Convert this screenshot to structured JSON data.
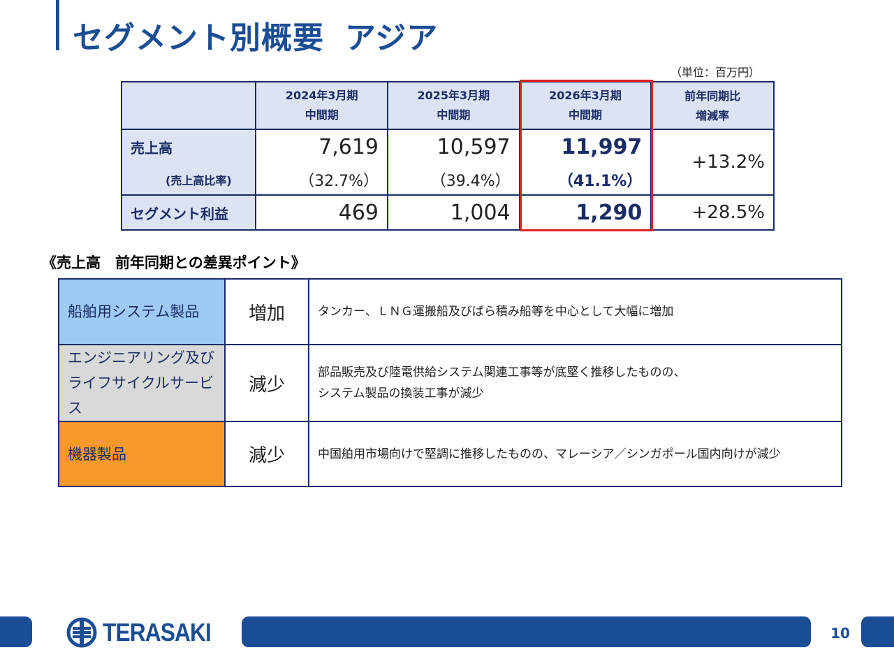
{
  "header": {
    "title": "セグメント別概要",
    "subtitle": "アジア"
  },
  "unit_note": "（単位：百万円）",
  "financial_table": {
    "columns": [
      {
        "line1": "2024年3月期",
        "line2": "中間期"
      },
      {
        "line1": "2025年3月期",
        "line2": "中間期"
      },
      {
        "line1": "2026年3月期",
        "line2": "中間期"
      },
      {
        "line1": "前年同期比",
        "line2": "増減率"
      }
    ],
    "rows": {
      "sales": {
        "label": "売上高",
        "values": [
          "7,619",
          "10,597",
          "11,997"
        ],
        "change": "+13.2%"
      },
      "sales_ratio": {
        "label": "(売上高比率)",
        "values": [
          "（32.7%）",
          "（39.4%）",
          "（41.1%）"
        ]
      },
      "segment_profit": {
        "label": "セグメント利益",
        "values": [
          "469",
          "1,004",
          "1,290"
        ],
        "change": "+28.5%"
      }
    },
    "highlight_color": "#e02020"
  },
  "points_section": {
    "heading": "《売上高　前年同期との差異ポイント》",
    "rows": [
      {
        "category": "船舶用システム製品",
        "direction": "増加",
        "description_lines": [
          "タンカー、ＬＮＧ運搬船及びばら積み船等を中心として大幅に増加"
        ],
        "color": "#9ecbf5"
      },
      {
        "category_lines": [
          "エンジニアリング及び",
          "ライフサイクルサービス"
        ],
        "direction": "減少",
        "description_lines": [
          "部品販売及び陸電供給システム関連工事等が底堅く推移したものの、",
          "システム製品の換装工事が減少"
        ],
        "color": "#d9d9d9"
      },
      {
        "category": "機器製品",
        "direction": "減少",
        "description_lines": [
          "中国舶用市場向けで堅調に推移したものの、マレーシア／シンガポール国内向けが減少"
        ],
        "color": "#f8992c"
      }
    ]
  },
  "footer": {
    "logo_text": "TERASAKI",
    "page_number": "10",
    "brand_color": "#1a4d96"
  }
}
